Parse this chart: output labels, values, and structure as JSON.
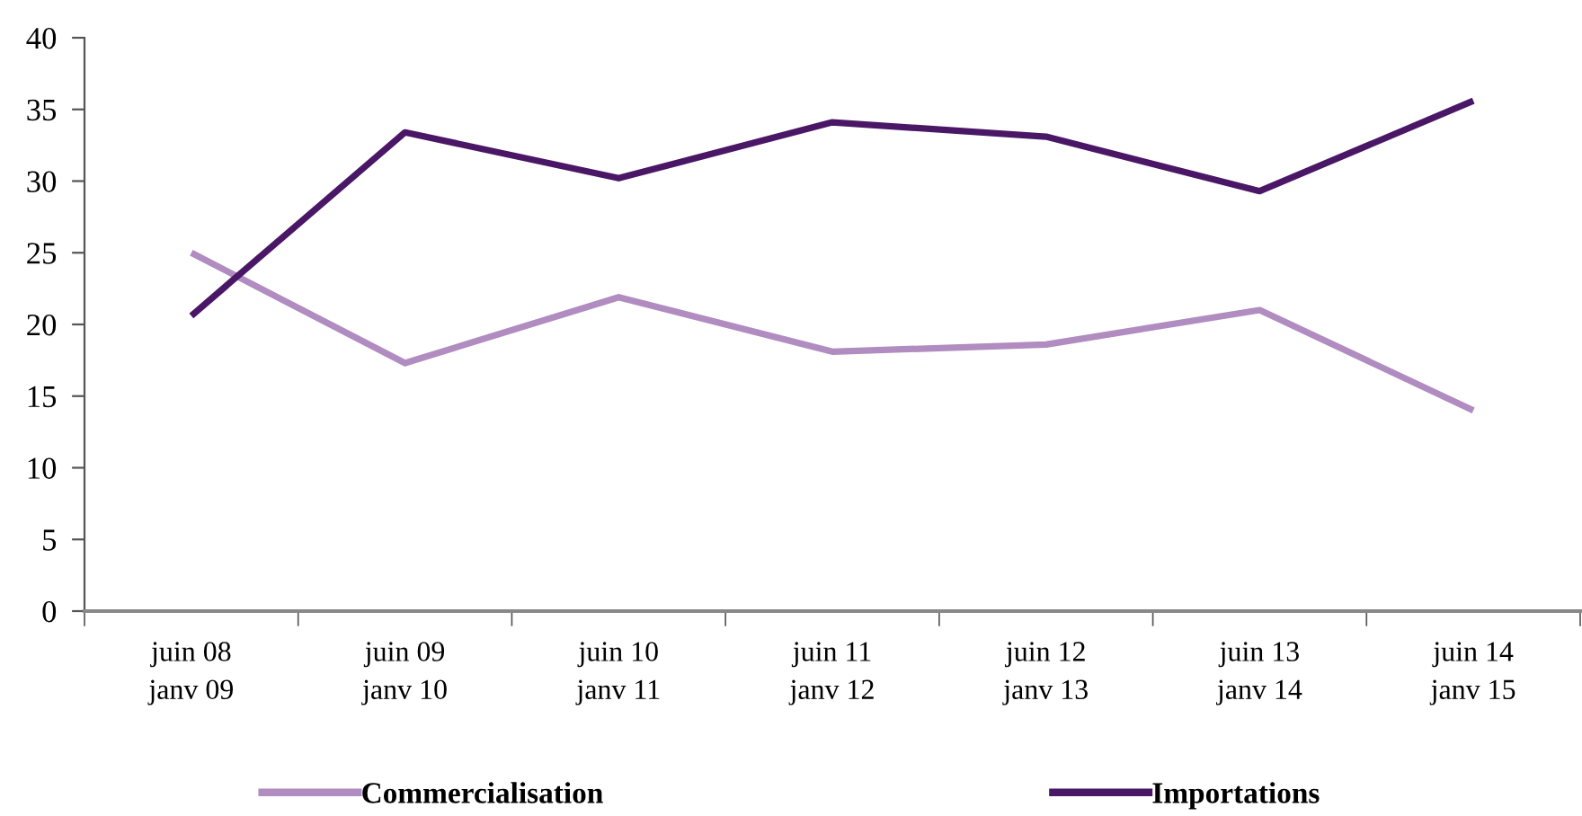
{
  "chart_data": {
    "type": "line",
    "categories": [
      "juin 08\njanv 09",
      "juin 09\njanv 10",
      "juin 10\njanv 11",
      "juin 11\njanv 12",
      "juin 12\njanv 13",
      "juin 13\njanv 14",
      "juin 14\njanv 15"
    ],
    "series": [
      {
        "name": "Commercialisation",
        "color": "#b08cc0",
        "values": [
          25,
          17.3,
          21.9,
          18.1,
          18.6,
          21.0,
          14.0
        ]
      },
      {
        "name": "Importations",
        "color": "#4a1766",
        "values": [
          20.6,
          33.4,
          30.2,
          34.1,
          33.1,
          29.3,
          35.6
        ]
      }
    ],
    "ylim": [
      0,
      40
    ],
    "yticks": [
      0,
      5,
      10,
      15,
      20,
      25,
      30,
      35,
      40
    ],
    "grid": false,
    "legend": "bottom",
    "marker": "none",
    "line_style": "solid"
  }
}
